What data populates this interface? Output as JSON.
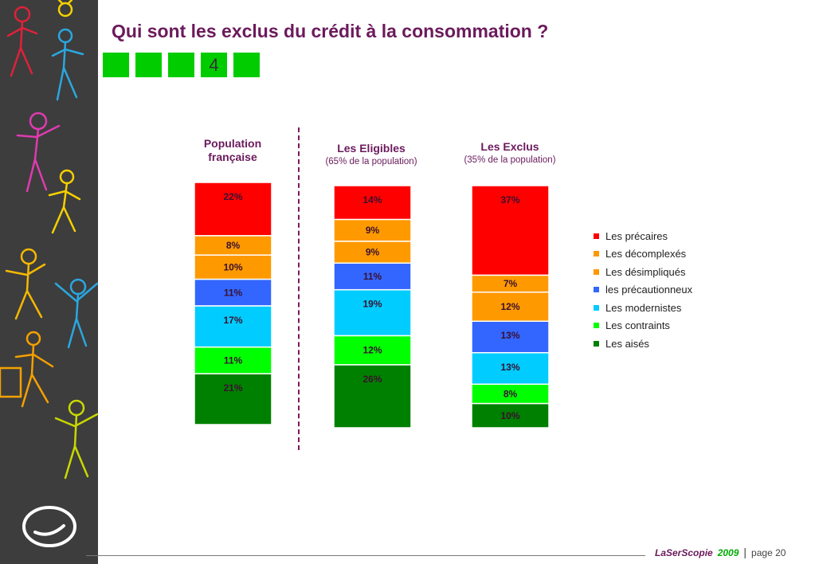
{
  "title": "Qui sont les exclus du crédit à la consommation ?",
  "steps": [
    "",
    "",
    "",
    "4",
    ""
  ],
  "colors": {
    "precaires": "#ff0000",
    "decomplexes": "#ff9900",
    "desimpliques": "#ff9900",
    "precautionneux": "#3366ff",
    "modernistes": "#00ccff",
    "contraints": "#00ff00",
    "aises": "#008000"
  },
  "groups": [
    {
      "title": "Population française",
      "subtitle": ""
    },
    {
      "title": "Les Eligibles",
      "subtitle": "(65% de la population)"
    },
    {
      "title": "Les Exclus",
      "subtitle": "(35% de la population)"
    }
  ],
  "chart_data": {
    "type": "bar",
    "stacked": true,
    "categories": [
      "Population française",
      "Les Eligibles",
      "Les Exclus"
    ],
    "series": [
      {
        "name": "Les précaires",
        "values": [
          22,
          14,
          37
        ],
        "color": "#ff0000"
      },
      {
        "name": "Les décomplexés",
        "values": [
          8,
          9,
          7
        ],
        "color": "#ff9900"
      },
      {
        "name": "Les désimpliqués",
        "values": [
          10,
          9,
          12
        ],
        "color": "#ff9900"
      },
      {
        "name": "les précautionneux",
        "values": [
          11,
          11,
          13
        ],
        "color": "#3366ff"
      },
      {
        "name": "Les modernistes",
        "values": [
          17,
          19,
          13
        ],
        "color": "#00ccff"
      },
      {
        "name": "Les contraints",
        "values": [
          11,
          12,
          8
        ],
        "color": "#00ff00"
      },
      {
        "name": "Les aisés",
        "values": [
          21,
          26,
          10
        ],
        "color": "#008000"
      }
    ],
    "legend_position": "right"
  },
  "footer": {
    "brand": "LaSerScopie",
    "year": "2009",
    "separator": "|",
    "page": "page 20"
  }
}
